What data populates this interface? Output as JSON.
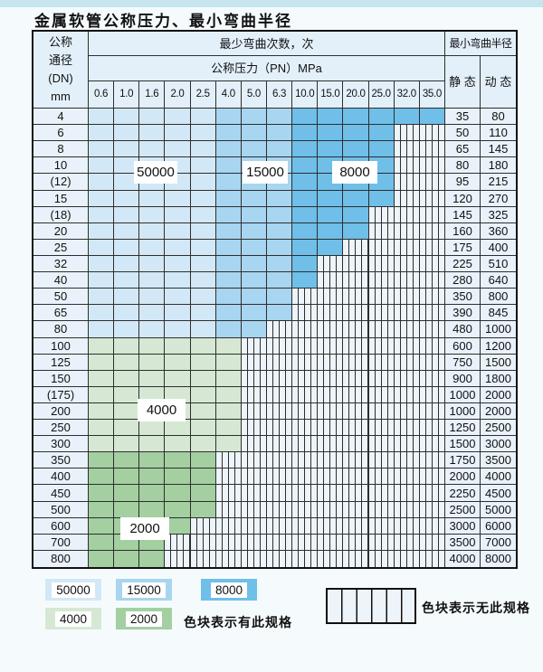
{
  "title": "金属软管公称压力、最小弯曲半径",
  "table": {
    "header": {
      "dn_lines": [
        "公称",
        "通径",
        "(DN)",
        "mm"
      ],
      "bend_cycles_label": "最少弯曲次数，次",
      "pressure_label": "公称压力（PN）MPa",
      "radius_label": "最小弯曲半径",
      "static_label": "静 态",
      "dynamic_label": "动 态",
      "pressure_columns": [
        "0.6",
        "1.0",
        "1.6",
        "2.0",
        "2.5",
        "4.0",
        "5.0",
        "6.3",
        "10.0",
        "15.0",
        "20.0",
        "25.0",
        "32.0",
        "35.0"
      ]
    },
    "rows": [
      {
        "dn": "4",
        "static": "35",
        "dynamic": "80",
        "colored": 14,
        "band": "blue"
      },
      {
        "dn": "6",
        "static": "50",
        "dynamic": "110",
        "colored": 12,
        "band": "blue"
      },
      {
        "dn": "8",
        "static": "65",
        "dynamic": "145",
        "colored": 12,
        "band": "blue"
      },
      {
        "dn": "10",
        "static": "80",
        "dynamic": "180",
        "colored": 12,
        "band": "blue"
      },
      {
        "dn": "(12)",
        "static": "95",
        "dynamic": "215",
        "colored": 12,
        "band": "blue"
      },
      {
        "dn": "15",
        "static": "120",
        "dynamic": "270",
        "colored": 12,
        "band": "blue"
      },
      {
        "dn": "(18)",
        "static": "145",
        "dynamic": "325",
        "colored": 11,
        "band": "blue"
      },
      {
        "dn": "20",
        "static": "160",
        "dynamic": "360",
        "colored": 11,
        "band": "blue"
      },
      {
        "dn": "25",
        "static": "175",
        "dynamic": "400",
        "colored": 10,
        "band": "blue"
      },
      {
        "dn": "32",
        "static": "225",
        "dynamic": "510",
        "colored": 9,
        "band": "blue"
      },
      {
        "dn": "40",
        "static": "280",
        "dynamic": "640",
        "colored": 9,
        "band": "blue"
      },
      {
        "dn": "50",
        "static": "350",
        "dynamic": "800",
        "colored": 8,
        "band": "blue"
      },
      {
        "dn": "65",
        "static": "390",
        "dynamic": "845",
        "colored": 8,
        "band": "blue"
      },
      {
        "dn": "80",
        "static": "480",
        "dynamic": "1000",
        "colored": 7,
        "band": "blue"
      },
      {
        "dn": "100",
        "static": "600",
        "dynamic": "1200",
        "colored": 6,
        "band": "green-light"
      },
      {
        "dn": "125",
        "static": "750",
        "dynamic": "1500",
        "colored": 6,
        "band": "green-light"
      },
      {
        "dn": "150",
        "static": "900",
        "dynamic": "1800",
        "colored": 6,
        "band": "green-light"
      },
      {
        "dn": "(175)",
        "static": "1000",
        "dynamic": "2000",
        "colored": 6,
        "band": "green-light"
      },
      {
        "dn": "200",
        "static": "1000",
        "dynamic": "2000",
        "colored": 6,
        "band": "green-light"
      },
      {
        "dn": "250",
        "static": "1250",
        "dynamic": "2500",
        "colored": 6,
        "band": "green-light"
      },
      {
        "dn": "300",
        "static": "1500",
        "dynamic": "3000",
        "colored": 6,
        "band": "green-light"
      },
      {
        "dn": "350",
        "static": "1750",
        "dynamic": "3500",
        "colored": 5,
        "band": "green-dark"
      },
      {
        "dn": "400",
        "static": "2000",
        "dynamic": "4000",
        "colored": 5,
        "band": "green-dark"
      },
      {
        "dn": "450",
        "static": "2250",
        "dynamic": "4500",
        "colored": 5,
        "band": "green-dark"
      },
      {
        "dn": "500",
        "static": "2500",
        "dynamic": "5000",
        "colored": 5,
        "band": "green-dark"
      },
      {
        "dn": "600",
        "static": "3000",
        "dynamic": "6000",
        "colored": 4,
        "band": "green-dark"
      },
      {
        "dn": "700",
        "static": "3500",
        "dynamic": "7000",
        "colored": 3,
        "band": "green-dark"
      },
      {
        "dn": "800",
        "static": "4000",
        "dynamic": "8000",
        "colored": 3,
        "band": "green-dark"
      }
    ]
  },
  "region_labels": [
    {
      "text": "50000"
    },
    {
      "text": "15000"
    },
    {
      "text": "8000"
    },
    {
      "text": "4000"
    },
    {
      "text": "2000"
    }
  ],
  "legend": {
    "items": [
      {
        "value": "50000",
        "color": "#d3e8f6"
      },
      {
        "value": "15000",
        "color": "#a8d5f0"
      },
      {
        "value": "8000",
        "color": "#6fbfe9"
      },
      {
        "value": "4000",
        "color": "#d6e8d4"
      },
      {
        "value": "2000",
        "color": "#a3cfa1"
      }
    ],
    "has_spec_label": "色块表示有此规格",
    "no_spec_label": "色块表示无此规格"
  },
  "colors": {
    "page_bg": "#f5fbfd",
    "top_strip": "#c6e5ef",
    "grid_line": "#2e2e2e",
    "outer_border": "#111111",
    "header_bg": "#e3f0fa",
    "label_col_bg": "#e9f2fa",
    "striped_bg": "#edf4fa",
    "band_50000": "#d3e8f6",
    "band_15000": "#a8d5f0",
    "band_8000": "#6fbfe9",
    "band_4000": "#d6e8d4",
    "band_2000": "#a3cfa1"
  }
}
